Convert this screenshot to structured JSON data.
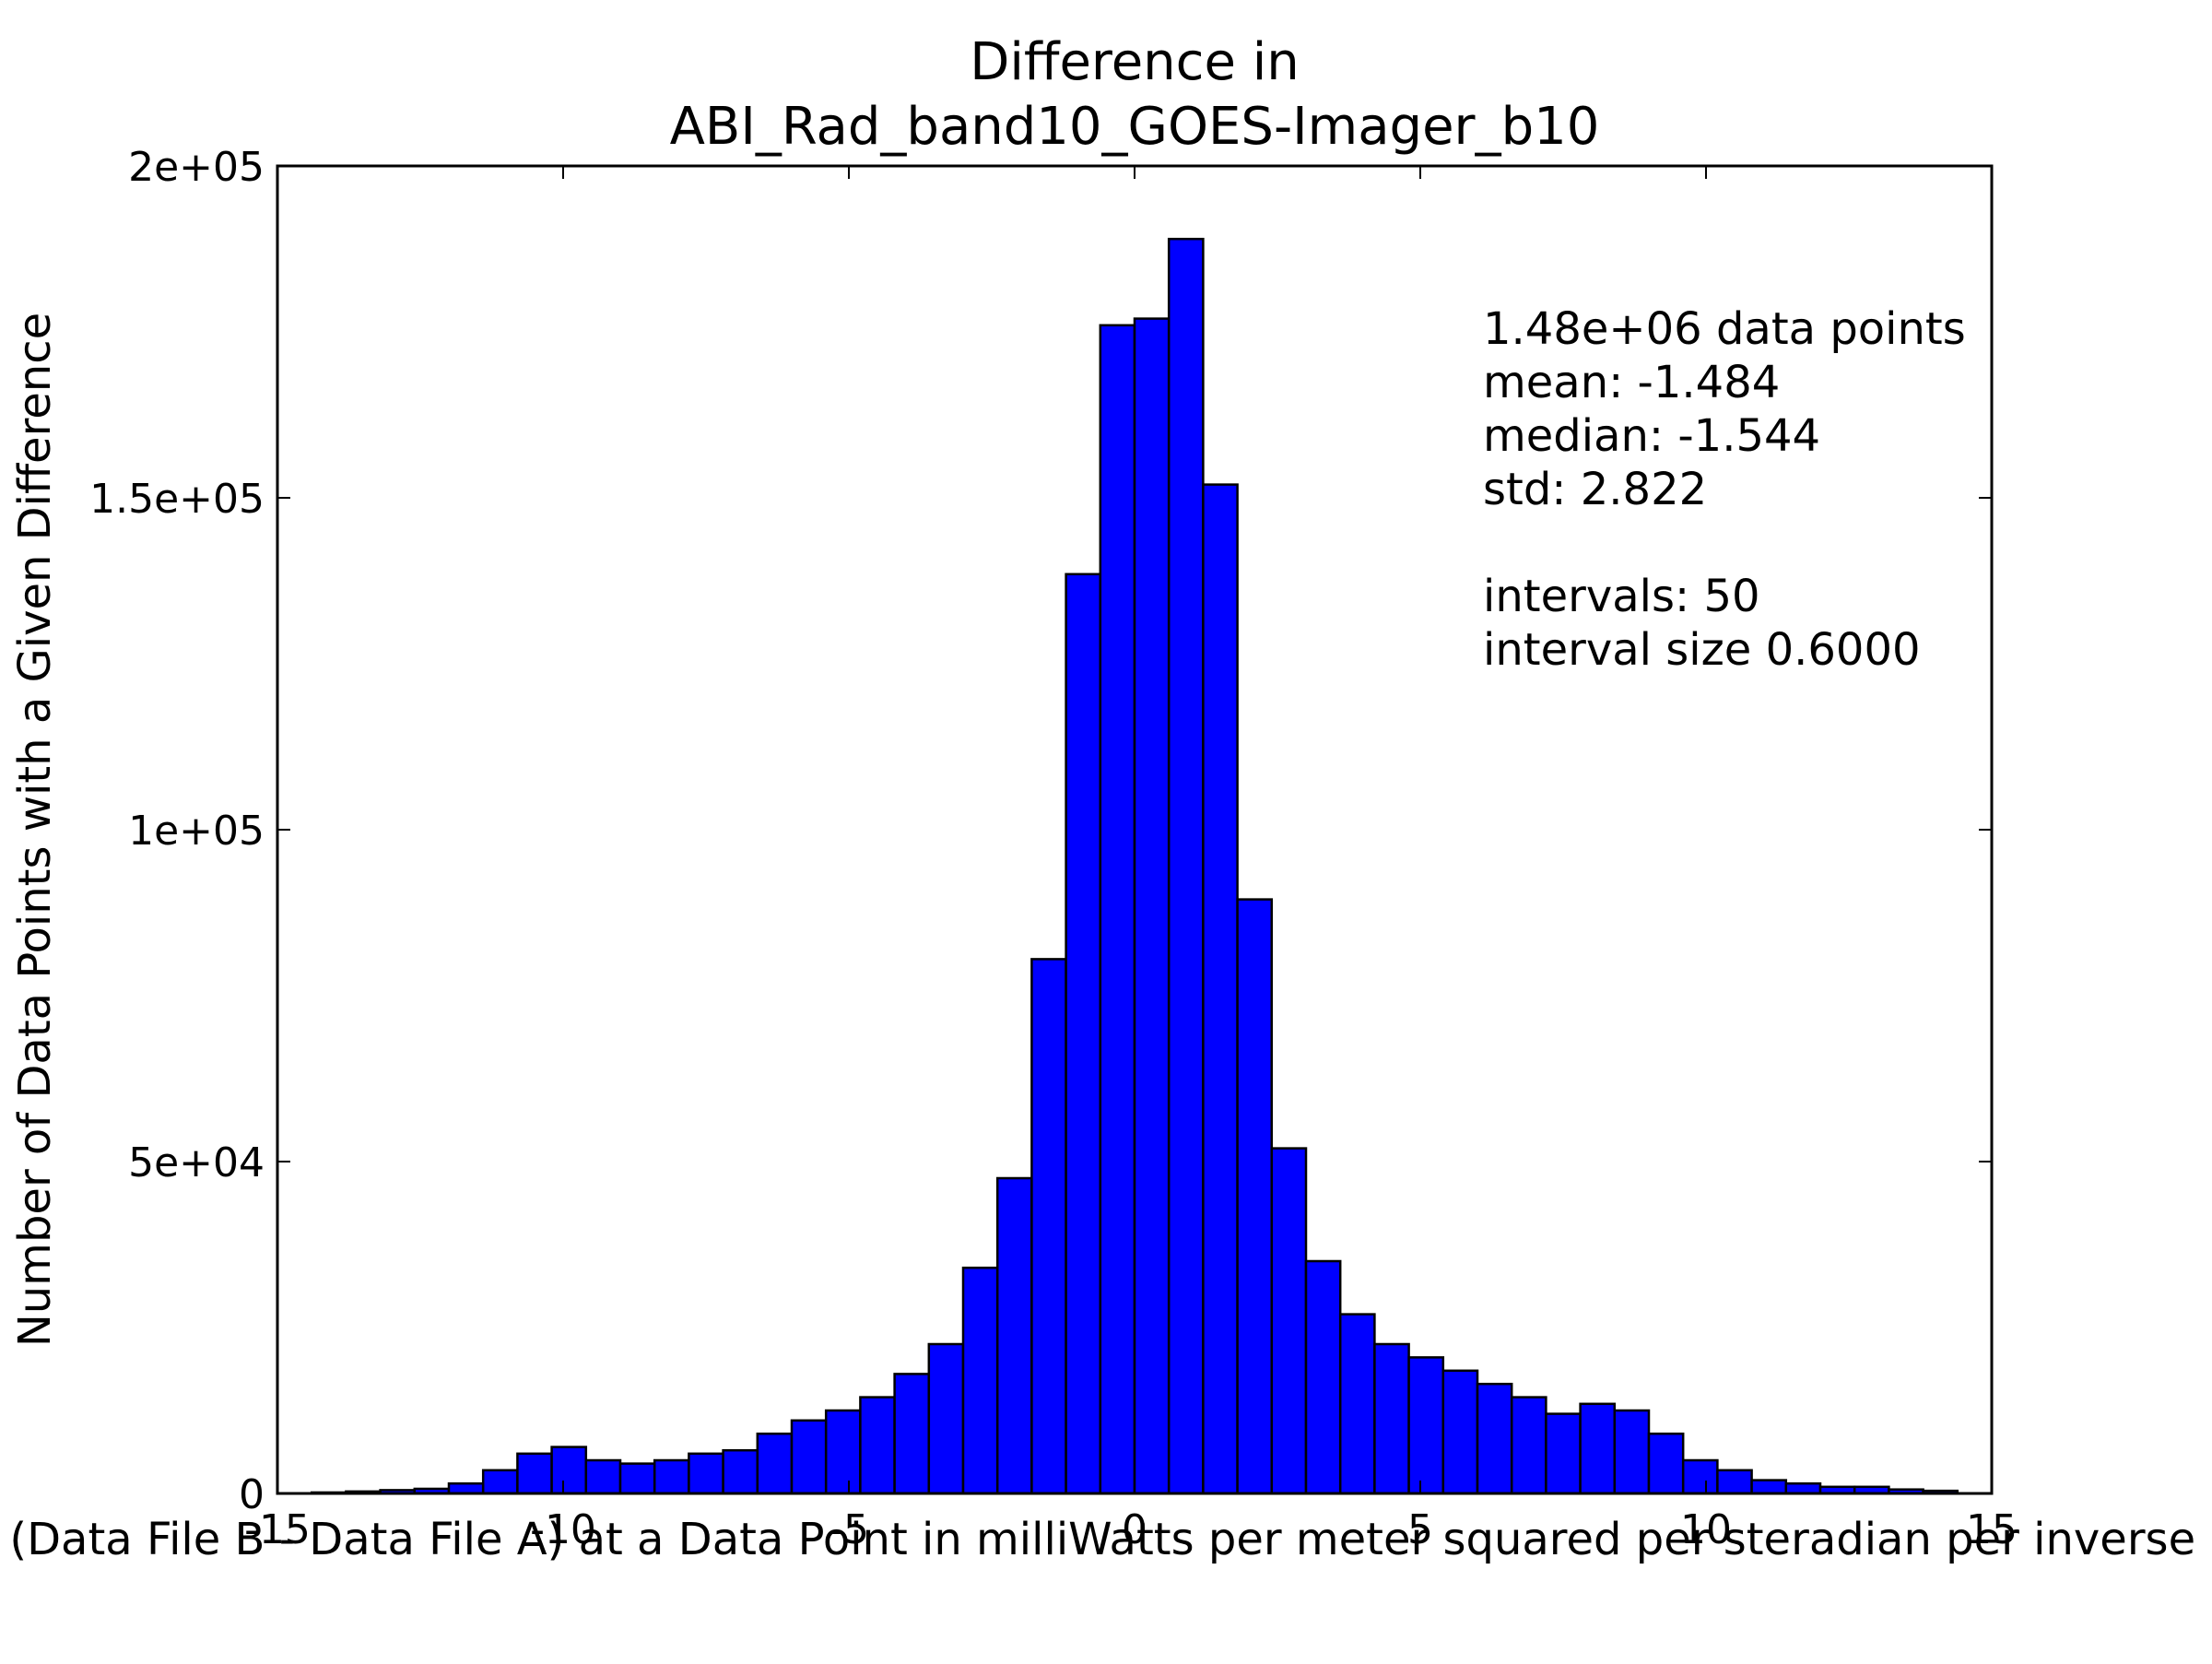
{
  "chart_data": {
    "type": "bar",
    "title": [
      "Difference in",
      "ABI_Rad_band10_GOES-Imager_b10"
    ],
    "xlabel": "Value of (Data File B - Data File A) at a Data Point in milliWatts per meter squared per steradian per inverse centimeter",
    "ylabel": "Number of Data Points with a Given Difference",
    "xlim": [
      -15,
      15
    ],
    "ylim": [
      0,
      200000
    ],
    "xticks": [
      -15,
      -10,
      -5,
      0,
      5,
      10,
      15
    ],
    "xtick_labels": [
      "-15",
      "-10",
      "-5",
      "0",
      "5",
      "10",
      "15"
    ],
    "yticks": [
      0,
      50000,
      100000,
      150000,
      200000
    ],
    "ytick_labels": [
      "0",
      "5e+04",
      "1e+05",
      "1.5e+05",
      "2e+05"
    ],
    "bar_color": "#0000ff",
    "bin_start": -14.4,
    "bin_width": 0.6,
    "values": [
      150,
      300,
      500,
      700,
      1500,
      3500,
      6000,
      7000,
      5000,
      4500,
      5000,
      6000,
      6500,
      9000,
      11000,
      12500,
      14500,
      18000,
      22500,
      34000,
      47500,
      80500,
      138500,
      176000,
      177000,
      189000,
      152000,
      89500,
      52000,
      35000,
      27000,
      22500,
      20500,
      18500,
      16500,
      14500,
      12000,
      13500,
      12500,
      9000,
      5000,
      3500,
      2000,
      1500,
      1000,
      1000,
      600,
      400,
      0,
      0
    ],
    "annotations": [
      "1.48e+06 data points",
      "mean: -1.484",
      "median: -1.544",
      "std: 2.822",
      "",
      "intervals: 50",
      "interval size 0.6000"
    ],
    "grid": false,
    "legend": "none"
  }
}
